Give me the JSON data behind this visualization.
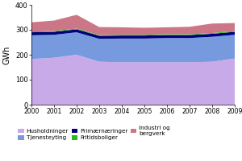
{
  "years": [
    2000,
    2001,
    2002,
    2003,
    2004,
    2005,
    2006,
    2007,
    2008,
    2009
  ],
  "husholdninger": [
    183,
    188,
    200,
    172,
    170,
    170,
    170,
    170,
    172,
    185
  ],
  "tjenesteyting": [
    95,
    92,
    90,
    92,
    95,
    95,
    97,
    97,
    100,
    95
  ],
  "primaernaringer": [
    12,
    12,
    12,
    12,
    12,
    12,
    12,
    12,
    12,
    12
  ],
  "fritidsboliger": [
    3,
    3,
    3,
    3,
    3,
    3,
    3,
    3,
    3,
    3
  ],
  "industri_og_bergverk": [
    37,
    42,
    55,
    32,
    30,
    28,
    28,
    30,
    38,
    32
  ],
  "colors": {
    "husholdninger": "#c8aae8",
    "tjenesteyting": "#7799dd",
    "primaernaringer": "#00007a",
    "fritidsboliger": "#22bb22",
    "industri_og_bergverk": "#cc7788"
  },
  "ylabel": "GWh",
  "ylim": [
    0,
    400
  ],
  "yticks": [
    0,
    100,
    200,
    300,
    400
  ],
  "legend_labels": [
    "Husholdninger",
    "Tjenesteyting",
    "Primærnæringer",
    "Fritidsboliger",
    "Industri og\nbergverk"
  ]
}
